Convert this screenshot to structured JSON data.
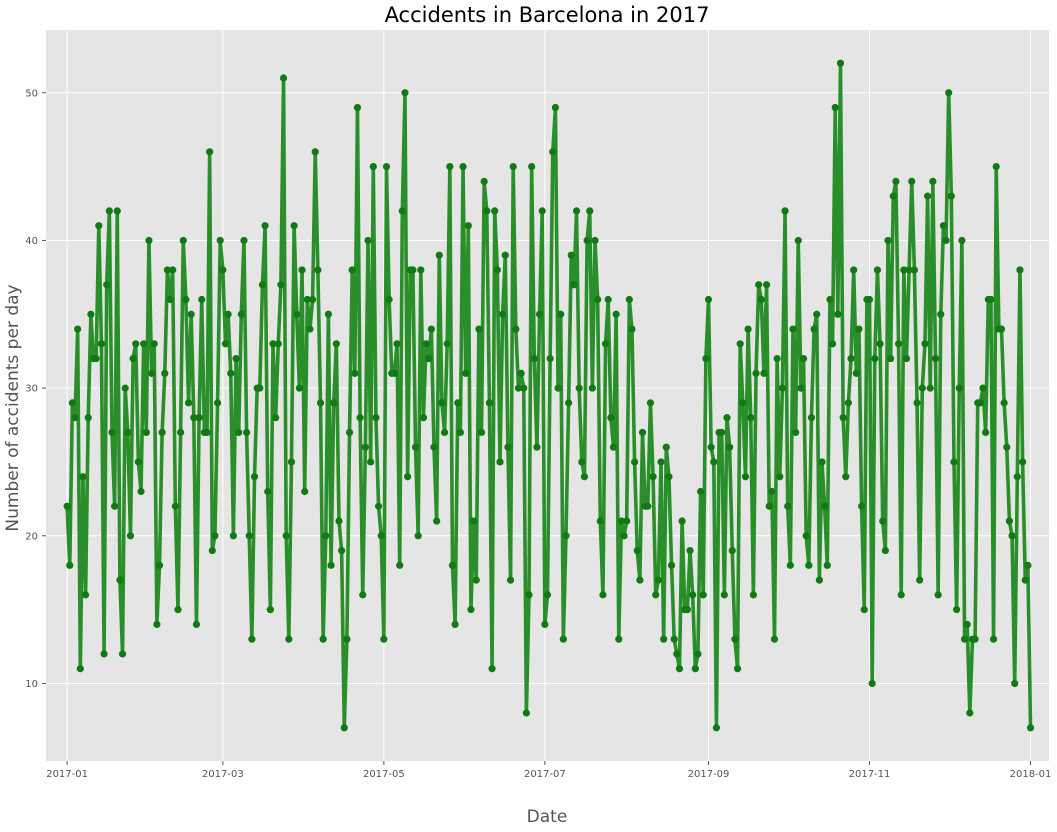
{
  "chart_data": {
    "type": "line",
    "title": "Accidents in Barcelona in 2017",
    "xlabel": "Date",
    "ylabel": "Number of accidents per day",
    "xlim": [
      "2016-12-24",
      "2018-01-08"
    ],
    "ylim": [
      4.75,
      54.25
    ],
    "grid": true,
    "marker": "circle",
    "line_color": "#2a8f2a",
    "marker_color": "#127a12",
    "background_color": "#e5e5e5",
    "x_ticks": [
      {
        "date": "2017-01-01",
        "label": "2017-01"
      },
      {
        "date": "2017-03-01",
        "label": "2017-03"
      },
      {
        "date": "2017-05-01",
        "label": "2017-05"
      },
      {
        "date": "2017-07-01",
        "label": "2017-07"
      },
      {
        "date": "2017-09-01",
        "label": "2017-09"
      },
      {
        "date": "2017-11-01",
        "label": "2017-11"
      },
      {
        "date": "2018-01-01",
        "label": "2018-01"
      }
    ],
    "y_ticks": [
      10,
      20,
      30,
      40,
      50
    ],
    "x_start": "2017-01-01",
    "y": [
      22,
      18,
      29,
      28,
      34,
      11,
      24,
      16,
      28,
      35,
      32,
      32,
      41,
      33,
      12,
      37,
      42,
      27,
      22,
      42,
      17,
      12,
      30,
      27,
      20,
      32,
      33,
      25,
      23,
      33,
      27,
      40,
      31,
      33,
      14,
      18,
      27,
      31,
      38,
      36,
      38,
      22,
      15,
      27,
      40,
      36,
      29,
      35,
      28,
      14,
      28,
      36,
      27,
      27,
      46,
      19,
      20,
      29,
      40,
      38,
      33,
      35,
      31,
      20,
      32,
      27,
      35,
      40,
      27,
      20,
      13,
      24,
      30,
      30,
      37,
      41,
      23,
      15,
      33,
      28,
      33,
      37,
      51,
      20,
      13,
      25,
      41,
      35,
      30,
      38,
      23,
      36,
      34,
      36,
      46,
      38,
      29,
      13,
      20,
      35,
      18,
      29,
      33,
      21,
      19,
      7,
      13,
      27,
      38,
      31,
      49,
      28,
      16,
      26,
      40,
      25,
      45,
      28,
      22,
      20,
      13,
      45,
      36,
      31,
      31,
      33,
      18,
      42,
      50,
      24,
      38,
      38,
      26,
      20,
      38,
      28,
      33,
      32,
      34,
      26,
      21,
      39,
      29,
      27,
      33,
      45,
      18,
      14,
      29,
      27,
      45,
      31,
      41,
      15,
      21,
      17,
      34,
      27,
      44,
      42,
      29,
      11,
      42,
      38,
      25,
      35,
      39,
      26,
      17,
      45,
      34,
      30,
      31,
      30,
      8,
      16,
      45,
      32,
      26,
      35,
      42,
      14,
      16,
      32,
      46,
      49,
      30,
      35,
      13,
      20,
      29,
      39,
      37,
      42,
      30,
      25,
      24,
      40,
      42,
      30,
      40,
      36,
      21,
      16,
      33,
      36,
      28,
      26,
      35,
      13,
      21,
      20,
      21,
      36,
      34,
      25,
      19,
      17,
      27,
      22,
      22,
      29,
      24,
      16,
      17,
      25,
      13,
      26,
      24,
      18,
      13,
      12,
      11,
      21,
      15,
      15,
      19,
      16,
      11,
      12,
      23,
      16,
      32,
      36,
      26,
      25,
      7,
      27,
      27,
      16,
      28,
      26,
      19,
      13,
      11,
      33,
      29,
      24,
      34,
      28,
      16,
      31,
      37,
      36,
      31,
      37,
      22,
      23,
      13,
      32,
      24,
      30,
      42,
      22,
      18,
      34,
      27,
      40,
      30,
      32,
      20,
      18,
      28,
      34,
      35,
      17,
      25,
      22,
      18,
      36,
      33,
      49,
      35,
      52,
      28,
      24,
      29,
      32,
      38,
      31,
      34,
      22,
      15,
      36,
      36,
      10,
      32,
      38,
      33,
      21,
      19,
      40,
      32,
      43,
      44,
      33,
      16,
      38,
      32,
      38,
      44,
      38,
      29,
      17,
      30,
      33,
      43,
      30,
      44,
      32,
      16,
      35,
      41,
      40,
      50,
      43,
      25,
      15,
      30,
      40,
      13,
      14,
      8,
      13,
      13,
      29,
      29,
      30,
      27,
      36,
      36,
      13,
      45,
      34,
      34,
      29,
      26,
      21,
      20,
      10,
      24,
      38,
      25,
      17,
      18,
      7
    ]
  }
}
